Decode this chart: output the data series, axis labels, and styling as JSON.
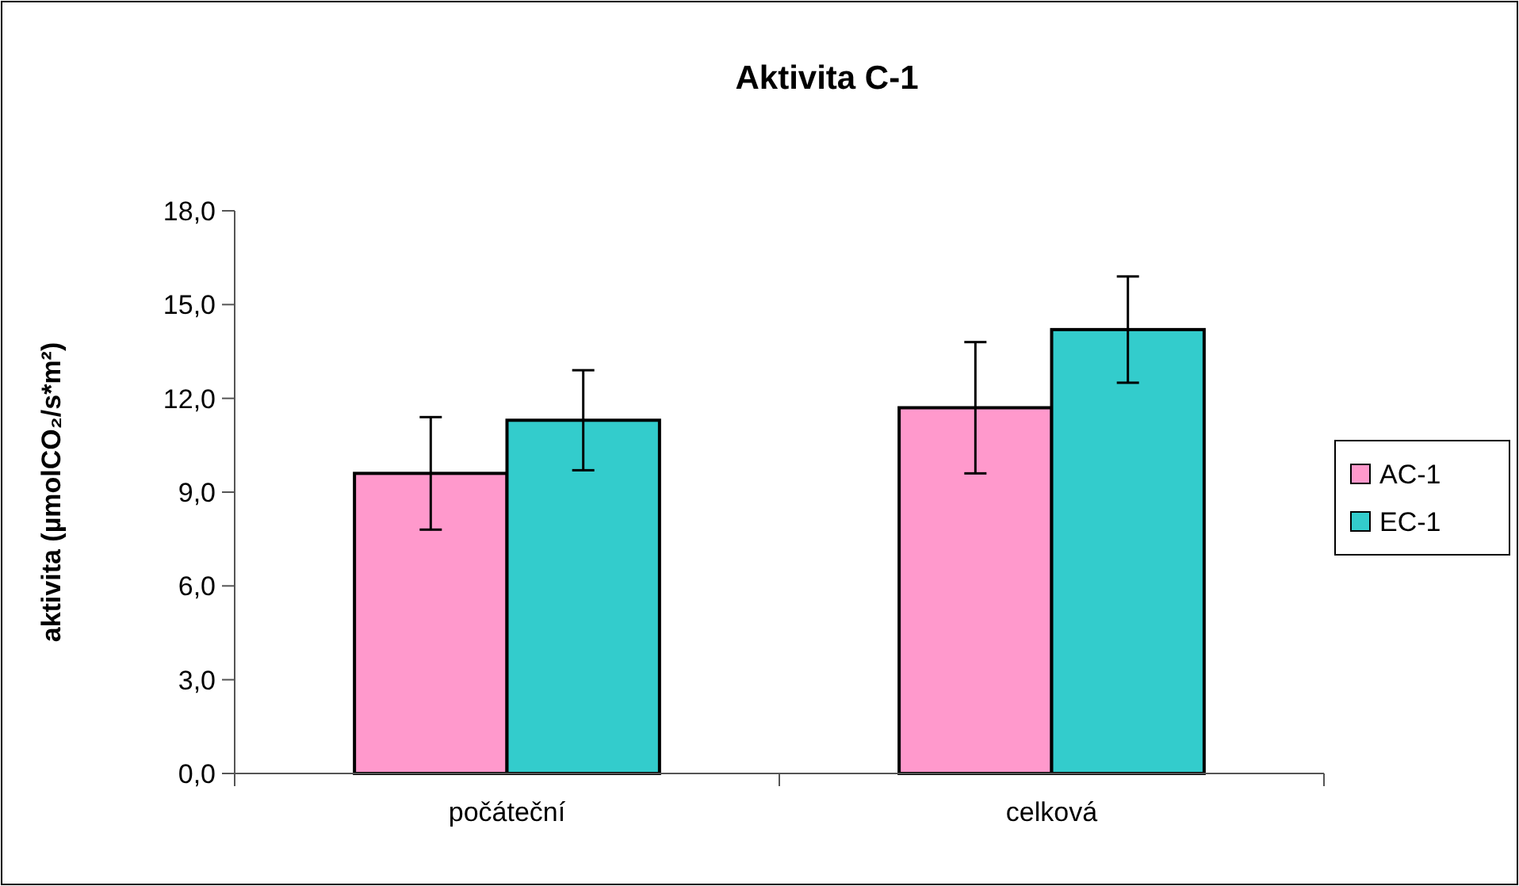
{
  "chart_data": {
    "type": "bar",
    "title": "Aktivita C-1",
    "ylabel": "aktivita (µmolCO₂/s*m²)",
    "categories": [
      "počáteční",
      "celková"
    ],
    "series": [
      {
        "name": "AC-1",
        "color": "#ff99cc",
        "values": [
          9.6,
          11.7
        ],
        "errors": [
          1.8,
          2.1
        ]
      },
      {
        "name": "EC-1",
        "color": "#33cccc",
        "values": [
          11.3,
          14.2
        ],
        "errors": [
          1.6,
          1.7
        ]
      }
    ],
    "ylim": [
      0,
      18
    ],
    "yticks": [
      {
        "value": 0,
        "label": "0,0"
      },
      {
        "value": 3,
        "label": "3,0"
      },
      {
        "value": 6,
        "label": "6,0"
      },
      {
        "value": 9,
        "label": "9,0"
      },
      {
        "value": 12,
        "label": "12,0"
      },
      {
        "value": 15,
        "label": "15,0"
      },
      {
        "value": 18,
        "label": "18,0"
      }
    ],
    "grid": false,
    "legend": "right"
  }
}
